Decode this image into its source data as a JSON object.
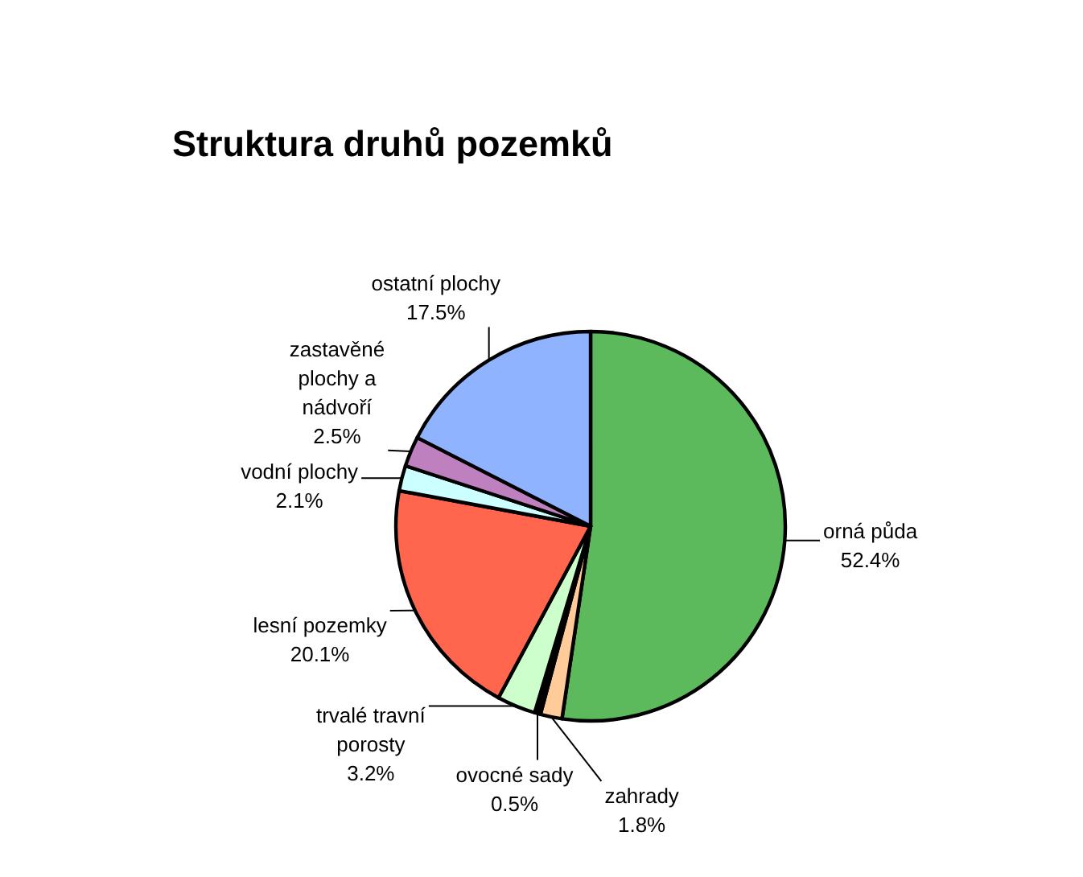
{
  "chart_data": {
    "type": "pie",
    "title": "Struktura druhů pozemků",
    "categories": [
      "orná půda",
      "zahrady",
      "ovocné sady",
      "trvalé travní porosty",
      "lesní pozemky",
      "vodní plochy",
      "zastavěné plochy a nádvoří",
      "ostatní plochy"
    ],
    "values": [
      52.4,
      1.8,
      0.5,
      3.2,
      20.1,
      2.1,
      2.5,
      17.5
    ],
    "value_labels": [
      "52.4%",
      "1.8%",
      "0.5%",
      "3.2%",
      "20.1%",
      "2.1%",
      "2.5%",
      "17.5%"
    ],
    "colors": [
      "#5cb95c",
      "#ffcc99",
      "#000000",
      "#ccffcc",
      "#ff664d",
      "#ccffff",
      "#bf80bf",
      "#8fb3ff"
    ]
  }
}
